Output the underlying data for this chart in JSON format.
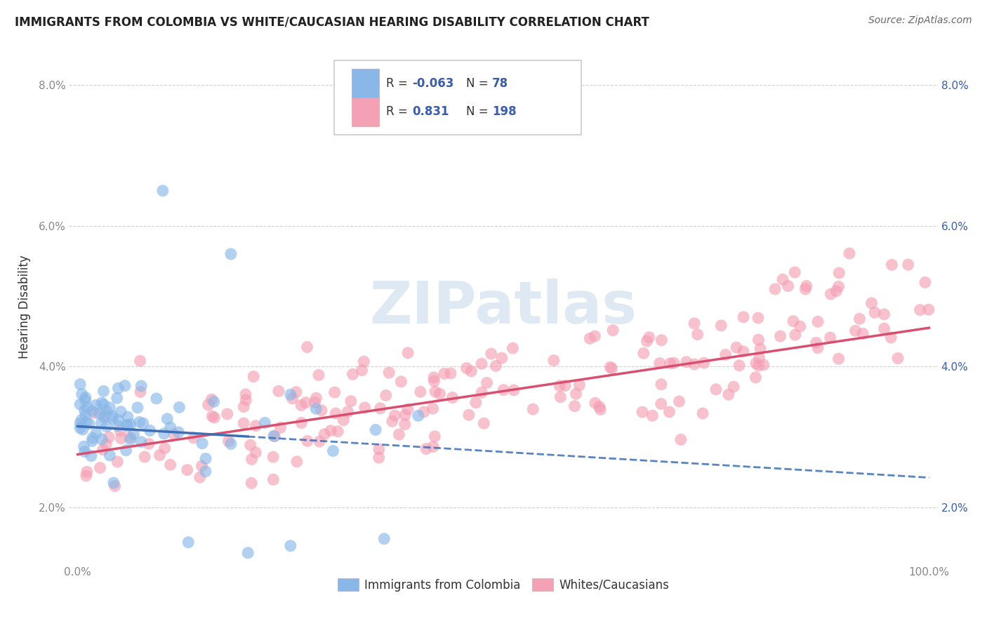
{
  "title": "IMMIGRANTS FROM COLOMBIA VS WHITE/CAUCASIAN HEARING DISABILITY CORRELATION CHART",
  "source": "Source: ZipAtlas.com",
  "ylabel": "Hearing Disability",
  "xlim": [
    -1,
    101
  ],
  "ylim": [
    1.2,
    8.5
  ],
  "yticks": [
    2.0,
    4.0,
    6.0,
    8.0
  ],
  "xticks": [
    0,
    20,
    40,
    60,
    80,
    100
  ],
  "xtick_labels": [
    "0.0%",
    "",
    "",
    "",
    "",
    "100.0%"
  ],
  "ytick_labels": [
    "2.0%",
    "4.0%",
    "6.0%",
    "8.0%"
  ],
  "color_blue": "#89b8e8",
  "color_pink": "#f4a0b5",
  "color_blue_line": "#3d6fb5",
  "color_pink_line": "#d94f70",
  "color_title": "#222222",
  "color_source": "#666666",
  "color_legend_val": "#3a5daa",
  "color_tick": "#888888",
  "watermark": "ZIPatlas",
  "background_color": "#ffffff",
  "grid_color": "#cccccc",
  "blue_trend_x0": 0,
  "blue_trend_y0": 3.15,
  "blue_trend_x1": 100,
  "blue_trend_y1": 2.42,
  "pink_trend_x0": 0,
  "pink_trend_y0": 2.75,
  "pink_trend_x1": 100,
  "pink_trend_y1": 4.55
}
